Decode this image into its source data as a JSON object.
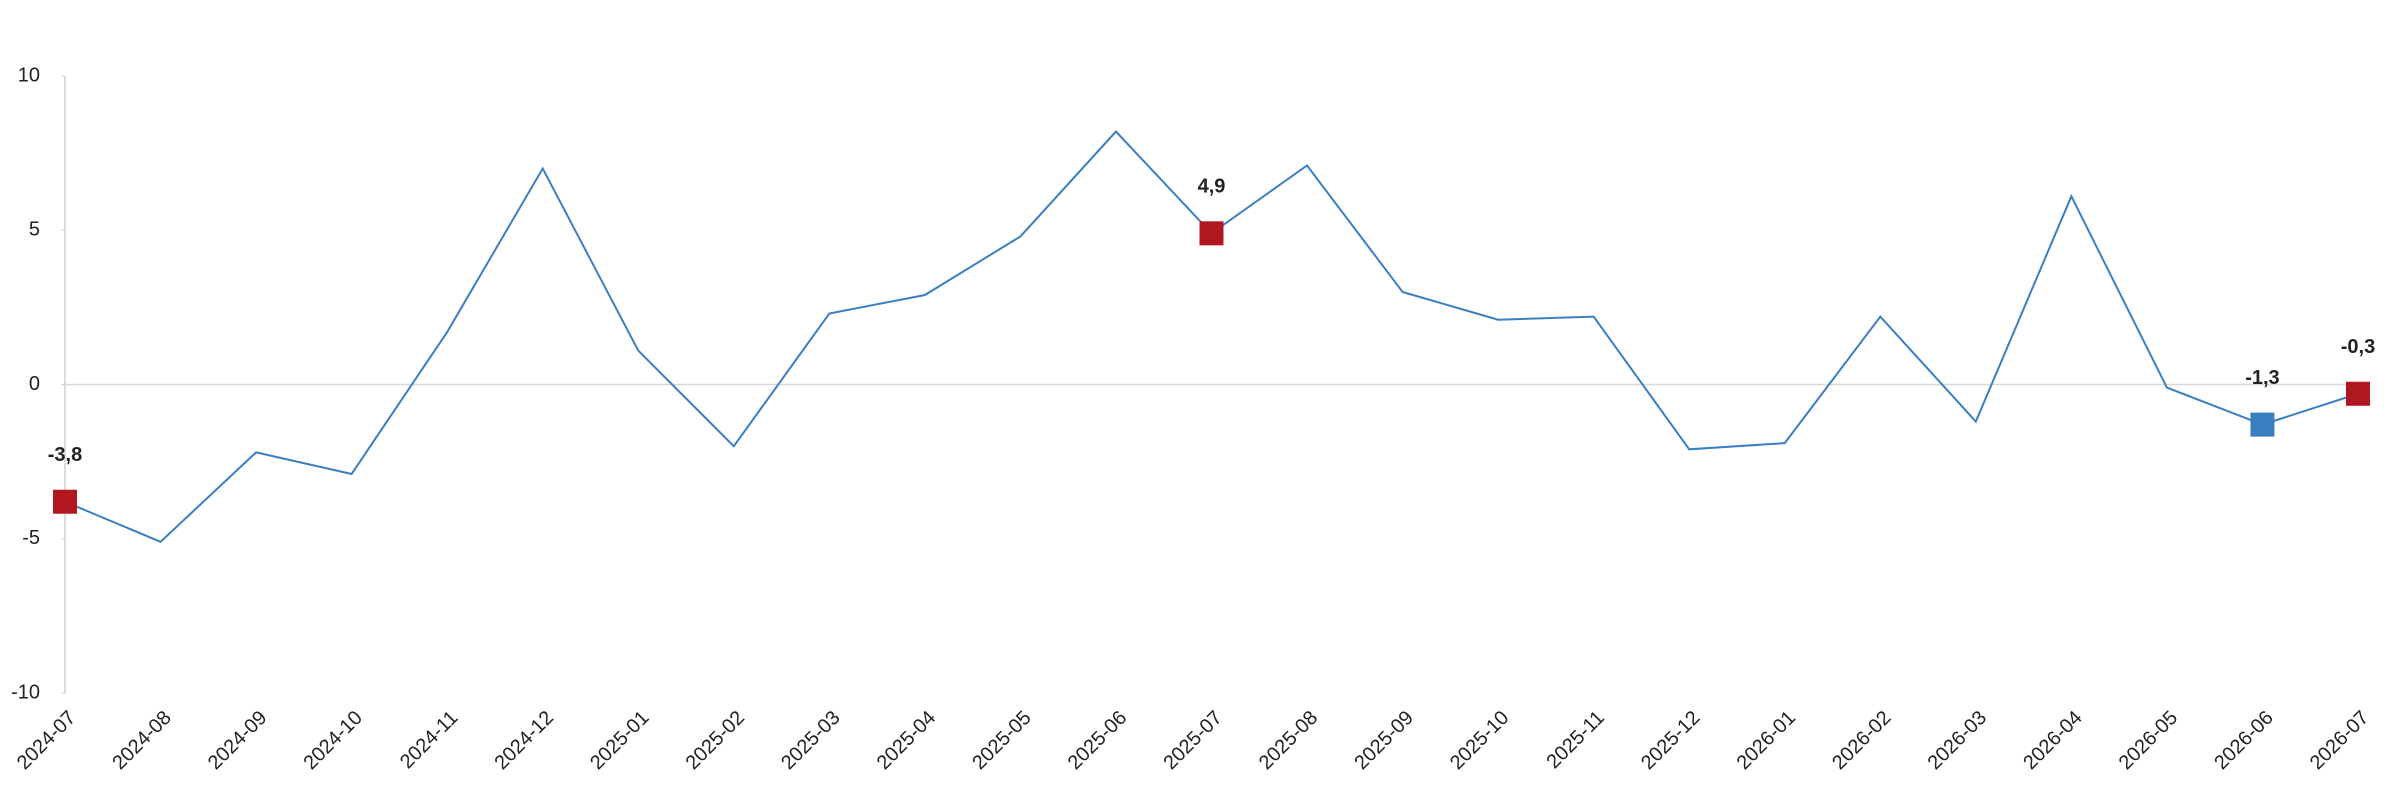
{
  "chart_data": {
    "type": "line",
    "categories": [
      "2024-07",
      "2024-08",
      "2024-09",
      "2024-10",
      "2024-11",
      "2024-12",
      "2025-01",
      "2025-02",
      "2025-03",
      "2025-04",
      "2025-05",
      "2025-06",
      "2025-07",
      "2025-08",
      "2025-09",
      "2025-10",
      "2025-11",
      "2025-12",
      "2026-01",
      "2026-02",
      "2026-03",
      "2026-04",
      "2026-05",
      "2026-06",
      "2026-07"
    ],
    "series": [
      {
        "color": "#3a7fc0",
        "values": [
          -3.8,
          -5.1,
          -2.2,
          -2.9,
          1.7,
          7.0,
          1.1,
          -2.0,
          2.3,
          2.9,
          4.8,
          8.2,
          4.9,
          7.1,
          3.0,
          2.1,
          2.2,
          -2.1,
          -1.9,
          2.2,
          -1.2,
          6.1,
          -0.1,
          -1.3,
          -0.3
        ],
        "value_labels": [
          "-3,8",
          null,
          null,
          null,
          null,
          null,
          null,
          null,
          null,
          null,
          null,
          null,
          "4,9",
          null,
          null,
          null,
          null,
          null,
          null,
          null,
          null,
          null,
          null,
          "-1,3",
          "-0,3"
        ],
        "marker_colors": [
          "#b0171f",
          null,
          null,
          null,
          null,
          null,
          null,
          null,
          null,
          null,
          null,
          null,
          "#b0171f",
          null,
          null,
          null,
          null,
          null,
          null,
          null,
          null,
          null,
          null,
          "#3a7fc0",
          "#b0171f"
        ]
      }
    ],
    "ylim": [
      -10,
      10
    ],
    "yticks": [
      -10,
      -5,
      0,
      5,
      10
    ]
  }
}
